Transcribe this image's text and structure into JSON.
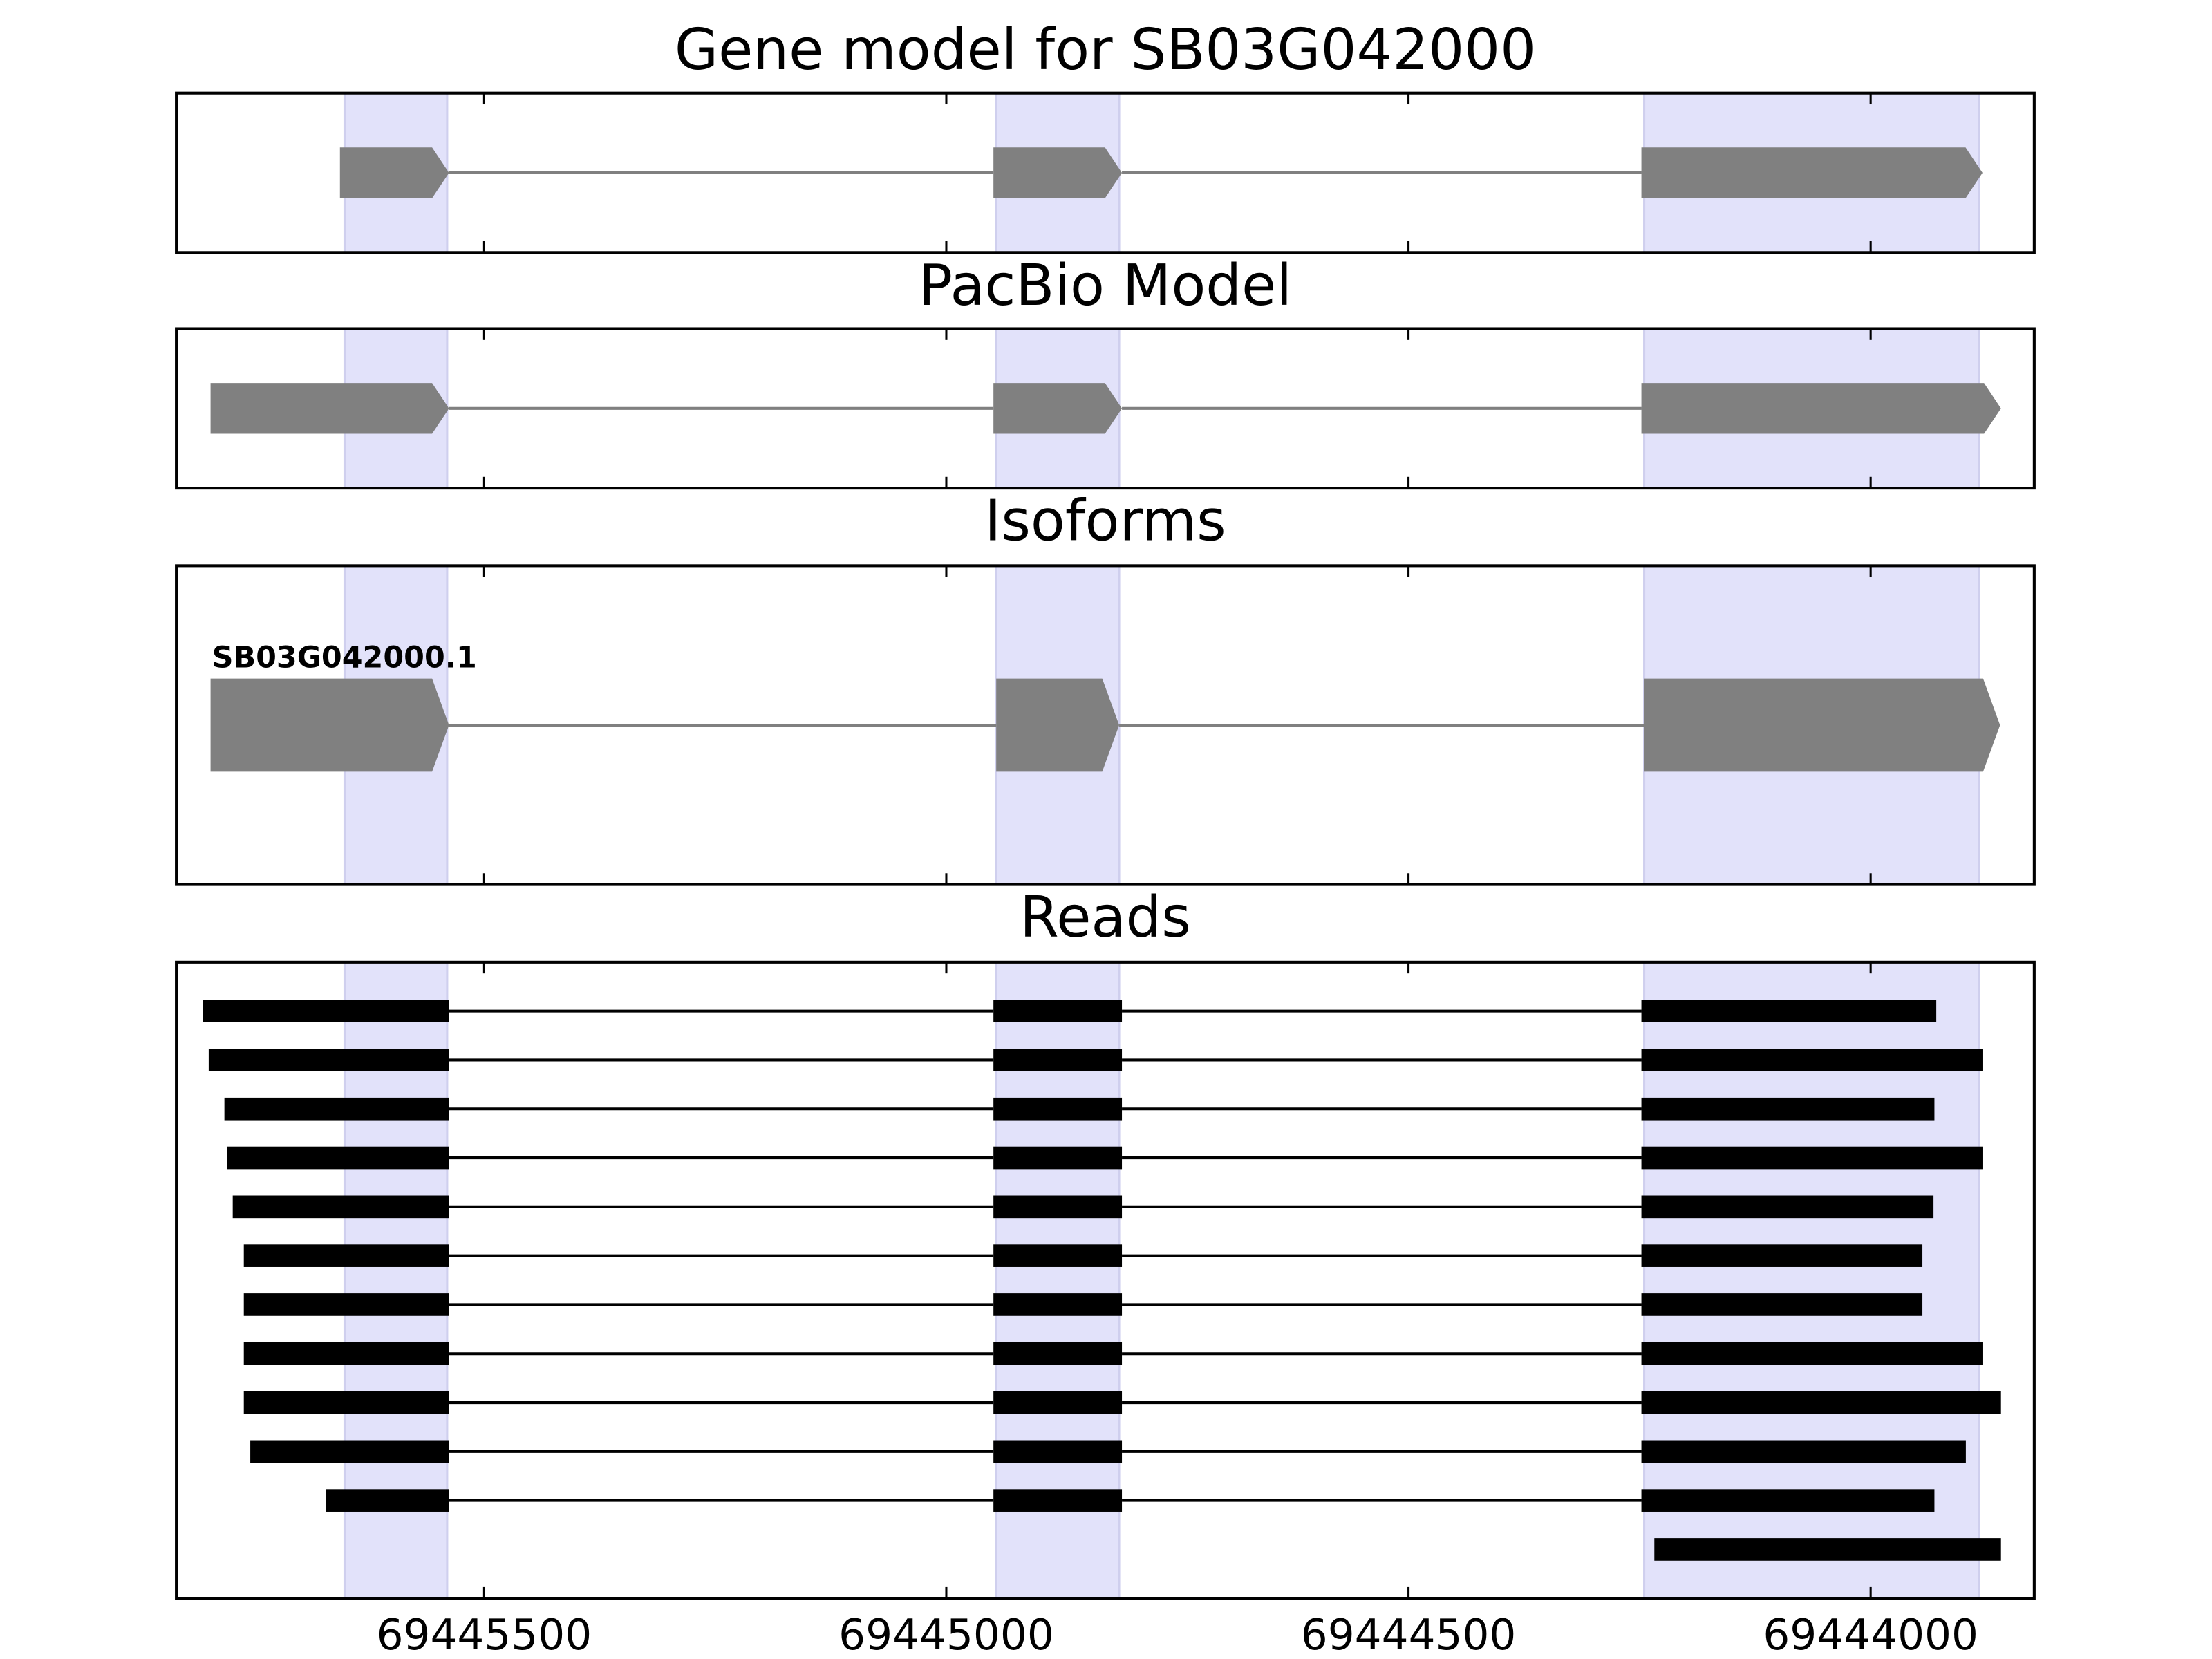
{
  "chart_data": [
    {
      "type": "gene",
      "title": "Gene model for SB03G042000",
      "style": "arrow",
      "color": "#808080",
      "xlim": [
        69445833,
        69443823
      ],
      "xticks": [
        69445500,
        69445000,
        69444500,
        69444000
      ],
      "tick_labels": false,
      "highlights": [
        [
          69445651,
          69445540
        ],
        [
          69444946,
          69444813
        ],
        [
          69444245,
          69443883
        ]
      ],
      "highlight_color": "#e2e2fa",
      "tracks": [
        {
          "exons": [
            [
              69445656,
              69445538
            ],
            [
              69444949,
              69444810
            ],
            [
              69444248,
              69443879
            ]
          ]
        }
      ]
    },
    {
      "type": "gene",
      "title": "PacBio Model",
      "style": "arrow",
      "color": "#808080",
      "xlim": [
        69445833,
        69443823
      ],
      "xticks": [
        69445500,
        69445000,
        69444500,
        69444000
      ],
      "tick_labels": false,
      "highlights": [
        [
          69445651,
          69445540
        ],
        [
          69444946,
          69444813
        ],
        [
          69444245,
          69443883
        ]
      ],
      "highlight_color": "#e2e2fa",
      "tracks": [
        {
          "exons": [
            [
              69445796,
              69445538
            ],
            [
              69444949,
              69444810
            ],
            [
              69444248,
              69443859
            ]
          ]
        }
      ]
    },
    {
      "type": "gene",
      "title": "Isoforms",
      "style": "arrow",
      "color": "#808080",
      "xlim": [
        69445833,
        69443823
      ],
      "xticks": [
        69445500,
        69445000,
        69444500,
        69444000
      ],
      "tick_labels": false,
      "highlights": [
        [
          69445651,
          69445540
        ],
        [
          69444946,
          69444813
        ],
        [
          69444245,
          69443883
        ]
      ],
      "highlight_color": "#e2e2fa",
      "tracks": [
        {
          "label": "SB03G042000.1",
          "exons": [
            [
              69445796,
              69445538
            ],
            [
              69444946,
              69444813
            ],
            [
              69444245,
              69443860
            ]
          ]
        }
      ]
    },
    {
      "type": "gene",
      "title": "Reads",
      "style": "bar",
      "color": "#000000",
      "xlim": [
        69445833,
        69443823
      ],
      "xticks": [
        69445500,
        69445000,
        69444500,
        69444000
      ],
      "tick_labels": true,
      "highlights": [
        [
          69445651,
          69445540
        ],
        [
          69444946,
          69444813
        ],
        [
          69444245,
          69443883
        ]
      ],
      "highlight_color": "#e2e2fa",
      "tracks": [
        {
          "exons": [
            [
              69445804,
              69445538
            ],
            [
              69444949,
              69444810
            ],
            [
              69444248,
              69443929
            ]
          ]
        },
        {
          "exons": [
            [
              69445798,
              69445538
            ],
            [
              69444949,
              69444810
            ],
            [
              69444248,
              69443879
            ]
          ]
        },
        {
          "exons": [
            [
              69445781,
              69445538
            ],
            [
              69444949,
              69444810
            ],
            [
              69444248,
              69443931
            ]
          ]
        },
        {
          "exons": [
            [
              69445778,
              69445538
            ],
            [
              69444949,
              69444810
            ],
            [
              69444248,
              69443879
            ]
          ]
        },
        {
          "exons": [
            [
              69445772,
              69445538
            ],
            [
              69444949,
              69444810
            ],
            [
              69444248,
              69443932
            ]
          ]
        },
        {
          "exons": [
            [
              69445760,
              69445538
            ],
            [
              69444949,
              69444810
            ],
            [
              69444248,
              69443944
            ]
          ]
        },
        {
          "exons": [
            [
              69445760,
              69445538
            ],
            [
              69444949,
              69444810
            ],
            [
              69444248,
              69443944
            ]
          ]
        },
        {
          "exons": [
            [
              69445760,
              69445538
            ],
            [
              69444949,
              69444810
            ],
            [
              69444248,
              69443879
            ]
          ]
        },
        {
          "exons": [
            [
              69445760,
              69445538
            ],
            [
              69444949,
              69444810
            ],
            [
              69444248,
              69443859
            ]
          ]
        },
        {
          "exons": [
            [
              69445753,
              69445538
            ],
            [
              69444949,
              69444810
            ],
            [
              69444248,
              69443897
            ]
          ]
        },
        {
          "exons": [
            [
              69445671,
              69445538
            ],
            [
              69444949,
              69444810
            ],
            [
              69444248,
              69443931
            ]
          ]
        },
        {
          "exons": [
            [
              69444234,
              69443859
            ]
          ]
        }
      ]
    }
  ]
}
